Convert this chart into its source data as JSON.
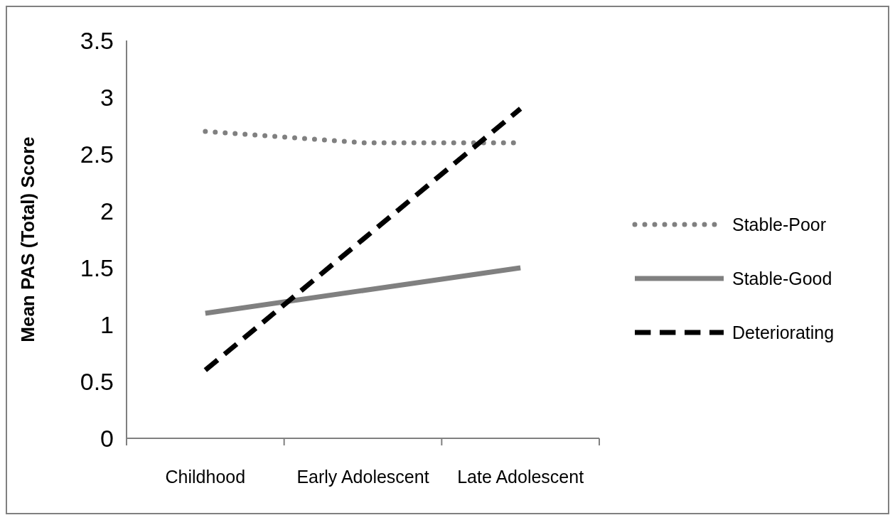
{
  "chart_data": {
    "type": "line",
    "ylabel": "Mean PAS (Total) Score",
    "categories": [
      "Childhood",
      "Early Adolescent",
      "Late Adolescent"
    ],
    "series": [
      {
        "name": "Stable-Poor",
        "color": "#808080",
        "line_style": "dotted",
        "values": [
          2.7,
          2.6,
          2.6
        ]
      },
      {
        "name": "Stable-Good",
        "color": "#808080",
        "line_style": "solid",
        "values": [
          1.1,
          1.3,
          1.5
        ]
      },
      {
        "name": "Deteriorating",
        "color": "#000000",
        "line_style": "dashed",
        "values": [
          0.6,
          1.75,
          2.9
        ]
      }
    ],
    "ylim": [
      0,
      3.5
    ],
    "yticks": [
      0,
      0.5,
      1,
      1.5,
      2,
      2.5,
      3,
      3.5
    ],
    "grid": false,
    "legend": "right"
  }
}
